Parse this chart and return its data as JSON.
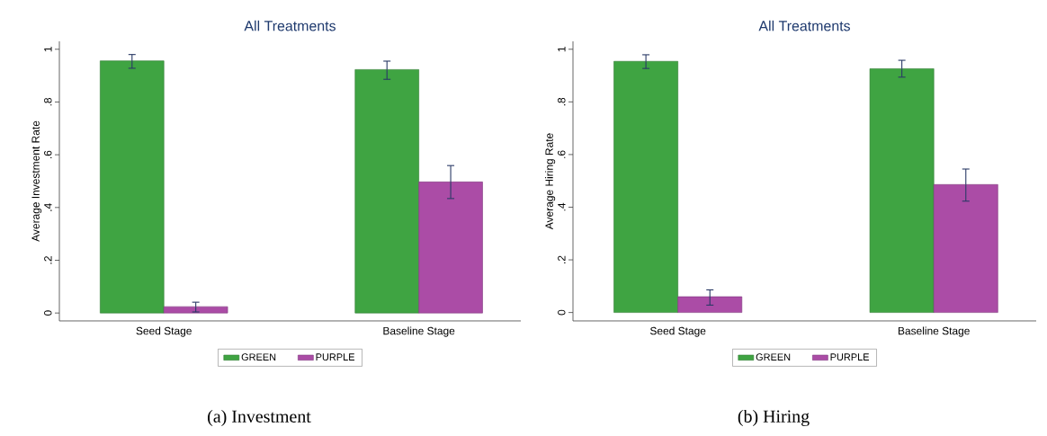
{
  "chart_data": [
    {
      "type": "bar",
      "title": "All Treatments",
      "ylabel": "Average Investment Rate",
      "categories": [
        "Seed Stage",
        "Baseline Stage"
      ],
      "series": [
        {
          "name": "GREEN",
          "color": "#3fa442",
          "values": [
            0.956,
            0.923
          ],
          "errors": [
            [
              0.928,
              0.98
            ],
            [
              0.886,
              0.955
            ]
          ]
        },
        {
          "name": "PURPLE",
          "color": "#ab4ca6",
          "values": [
            0.024,
            0.497
          ],
          "errors": [
            [
              0.004,
              0.041
            ],
            [
              0.434,
              0.559
            ]
          ]
        }
      ],
      "ylim": [
        -0.03,
        1.03
      ],
      "yticks": [
        0,
        {
          "value": 0.2,
          "label": ".2"
        },
        {
          "value": 0.4,
          "label": ".4"
        },
        {
          "value": 0.6,
          "label": ".6"
        },
        {
          "value": 0.8,
          "label": ".8"
        },
        1
      ],
      "legend": "bottom",
      "annotations": [
        "(a) Investment"
      ]
    },
    {
      "type": "bar",
      "title": "All Treatments",
      "ylabel": "Average Hiring Rate",
      "categories": [
        "Seed Stage",
        "Baseline Stage"
      ],
      "series": [
        {
          "name": "GREEN",
          "color": "#3fa442",
          "values": [
            0.954,
            0.926
          ],
          "errors": [
            [
              0.927,
              0.979
            ],
            [
              0.894,
              0.958
            ]
          ]
        },
        {
          "name": "PURPLE",
          "color": "#ab4ca6",
          "values": [
            0.06,
            0.486
          ],
          "errors": [
            [
              0.028,
              0.086
            ],
            [
              0.423,
              0.545
            ]
          ]
        }
      ],
      "ylim": [
        -0.032,
        1.03
      ],
      "yticks": [
        0,
        {
          "value": 0.2,
          "label": ".2"
        },
        {
          "value": 0.4,
          "label": ".4"
        },
        {
          "value": 0.6,
          "label": ".6"
        },
        {
          "value": 0.8,
          "label": ".8"
        },
        1
      ],
      "legend": "bottom",
      "annotations": [
        "(b) Hiring"
      ]
    }
  ]
}
